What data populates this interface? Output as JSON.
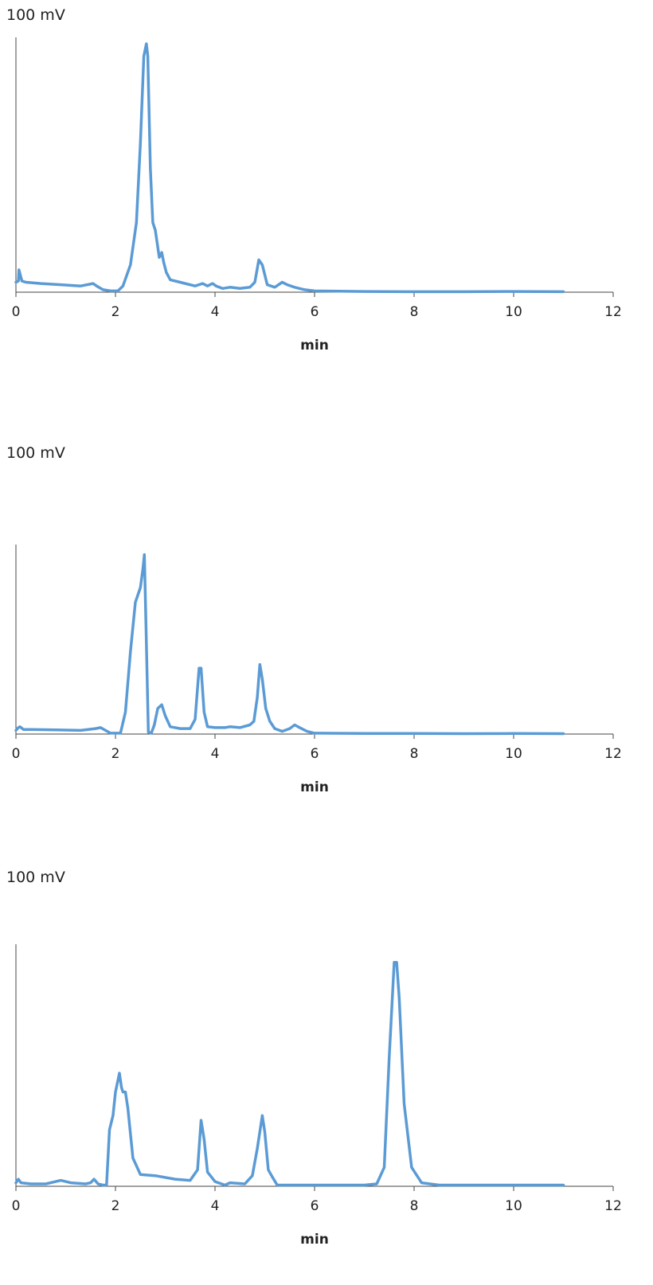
{
  "chart_data": [
    {
      "type": "line",
      "scale_label": "100 mV",
      "xlabel": "min",
      "xlim": [
        0,
        12
      ],
      "xticks": [
        0,
        2,
        4,
        6,
        8,
        10,
        12
      ],
      "ylim": [
        0,
        100
      ],
      "grid": false,
      "legend": "none",
      "color": "#5b9bd5",
      "x": [
        0,
        0.05,
        0.06,
        0.12,
        0.2,
        0.5,
        0.9,
        1.3,
        1.55,
        1.62,
        1.75,
        1.9,
        2.05,
        2.15,
        2.3,
        2.42,
        2.5,
        2.57,
        2.62,
        2.65,
        2.7,
        2.75,
        2.8,
        2.88,
        2.93,
        2.97,
        3.02,
        3.1,
        3.3,
        3.6,
        3.75,
        3.85,
        3.95,
        4.02,
        4.15,
        4.3,
        4.5,
        4.7,
        4.8,
        4.88,
        4.95,
        5.05,
        5.2,
        5.35,
        5.45,
        5.6,
        5.8,
        6.0,
        6.5,
        7.0,
        8.0,
        9.0,
        10.0,
        11.0
      ],
      "y": [
        4,
        4.5,
        9,
        4.5,
        4,
        3.5,
        3,
        2.5,
        3.5,
        2.5,
        1,
        0.5,
        0.5,
        2.5,
        11,
        28,
        60,
        95,
        100,
        95,
        50,
        28,
        25,
        14,
        16,
        12,
        8,
        5,
        4,
        2.5,
        3.5,
        2.5,
        3.5,
        2.5,
        1.5,
        2,
        1.5,
        2,
        4,
        13,
        11,
        3,
        2,
        4,
        3,
        2,
        1,
        0.5,
        0.4,
        0.3,
        0.2,
        0.2,
        0.3,
        0.2
      ]
    },
    {
      "type": "line",
      "scale_label": "100 mV",
      "xlabel": "min",
      "xlim": [
        0,
        12
      ],
      "xticks": [
        0,
        2,
        4,
        6,
        8,
        10,
        12
      ],
      "ylim": [
        0,
        100
      ],
      "grid": false,
      "legend": "none",
      "color": "#5b9bd5",
      "x": [
        0,
        0.05,
        0.08,
        0.15,
        0.3,
        0.8,
        1.3,
        1.6,
        1.7,
        1.8,
        1.9,
        2.0,
        2.1,
        2.2,
        2.3,
        2.4,
        2.5,
        2.55,
        2.58,
        2.62,
        2.66,
        2.72,
        2.78,
        2.85,
        2.93,
        3.0,
        3.1,
        3.3,
        3.5,
        3.6,
        3.68,
        3.72,
        3.78,
        3.85,
        4.0,
        4.2,
        4.3,
        4.5,
        4.7,
        4.78,
        4.85,
        4.9,
        4.95,
        5.02,
        5.1,
        5.2,
        5.35,
        5.5,
        5.6,
        5.7,
        5.85,
        6.0,
        7.0,
        8.0,
        9.0,
        10.0,
        11.0
      ],
      "y": [
        2,
        3.5,
        4,
        2.5,
        2.5,
        2.3,
        2,
        3,
        3.5,
        2,
        0.5,
        0.5,
        0.5,
        12,
        45,
        72,
        80,
        90,
        98,
        50,
        1,
        0.5,
        5,
        14,
        16,
        10,
        4,
        3,
        3,
        8,
        36,
        36,
        12,
        4,
        3.5,
        3.5,
        4,
        3.5,
        5,
        7,
        20,
        38,
        30,
        14,
        7,
        3,
        1.5,
        3,
        5,
        3.5,
        1.5,
        0.5,
        0.3,
        0.3,
        0.2,
        0.3,
        0.2
      ]
    },
    {
      "type": "line",
      "scale_label": "100 mV",
      "xlabel": "min",
      "xlim": [
        0,
        12
      ],
      "xticks": [
        0,
        2,
        4,
        6,
        8,
        10,
        12
      ],
      "ylim": [
        0,
        100
      ],
      "grid": false,
      "legend": "none",
      "color": "#5b9bd5",
      "x": [
        0,
        0.05,
        0.1,
        0.3,
        0.6,
        0.8,
        0.9,
        1.1,
        1.4,
        1.5,
        1.57,
        1.65,
        1.75,
        1.82,
        1.88,
        1.95,
        2.0,
        2.08,
        2.12,
        2.15,
        2.2,
        2.25,
        2.35,
        2.5,
        2.8,
        3.2,
        3.5,
        3.65,
        3.72,
        3.78,
        3.85,
        4.0,
        4.2,
        4.3,
        4.6,
        4.75,
        4.85,
        4.95,
        5.0,
        5.07,
        5.15,
        5.25,
        5.5,
        6.0,
        6.5,
        7.0,
        7.25,
        7.4,
        7.5,
        7.6,
        7.65,
        7.7,
        7.8,
        7.95,
        8.15,
        8.5,
        9.0,
        10.0,
        11.0
      ],
      "y": [
        1.5,
        3,
        1.5,
        1,
        1,
        2,
        2.5,
        1.5,
        1,
        1.5,
        3,
        1,
        0.5,
        0.5,
        24,
        30,
        40,
        48,
        42,
        40,
        40,
        33,
        12,
        5,
        4.5,
        3,
        2.5,
        7,
        28,
        20,
        6,
        2,
        0.5,
        1.5,
        1,
        4.5,
        16,
        30,
        23,
        7,
        4,
        0.5,
        0.5,
        0.5,
        0.5,
        0.5,
        1,
        8,
        55,
        95,
        95,
        80,
        35,
        8,
        1.5,
        0.5,
        0.5,
        0.5,
        0.5
      ]
    }
  ]
}
